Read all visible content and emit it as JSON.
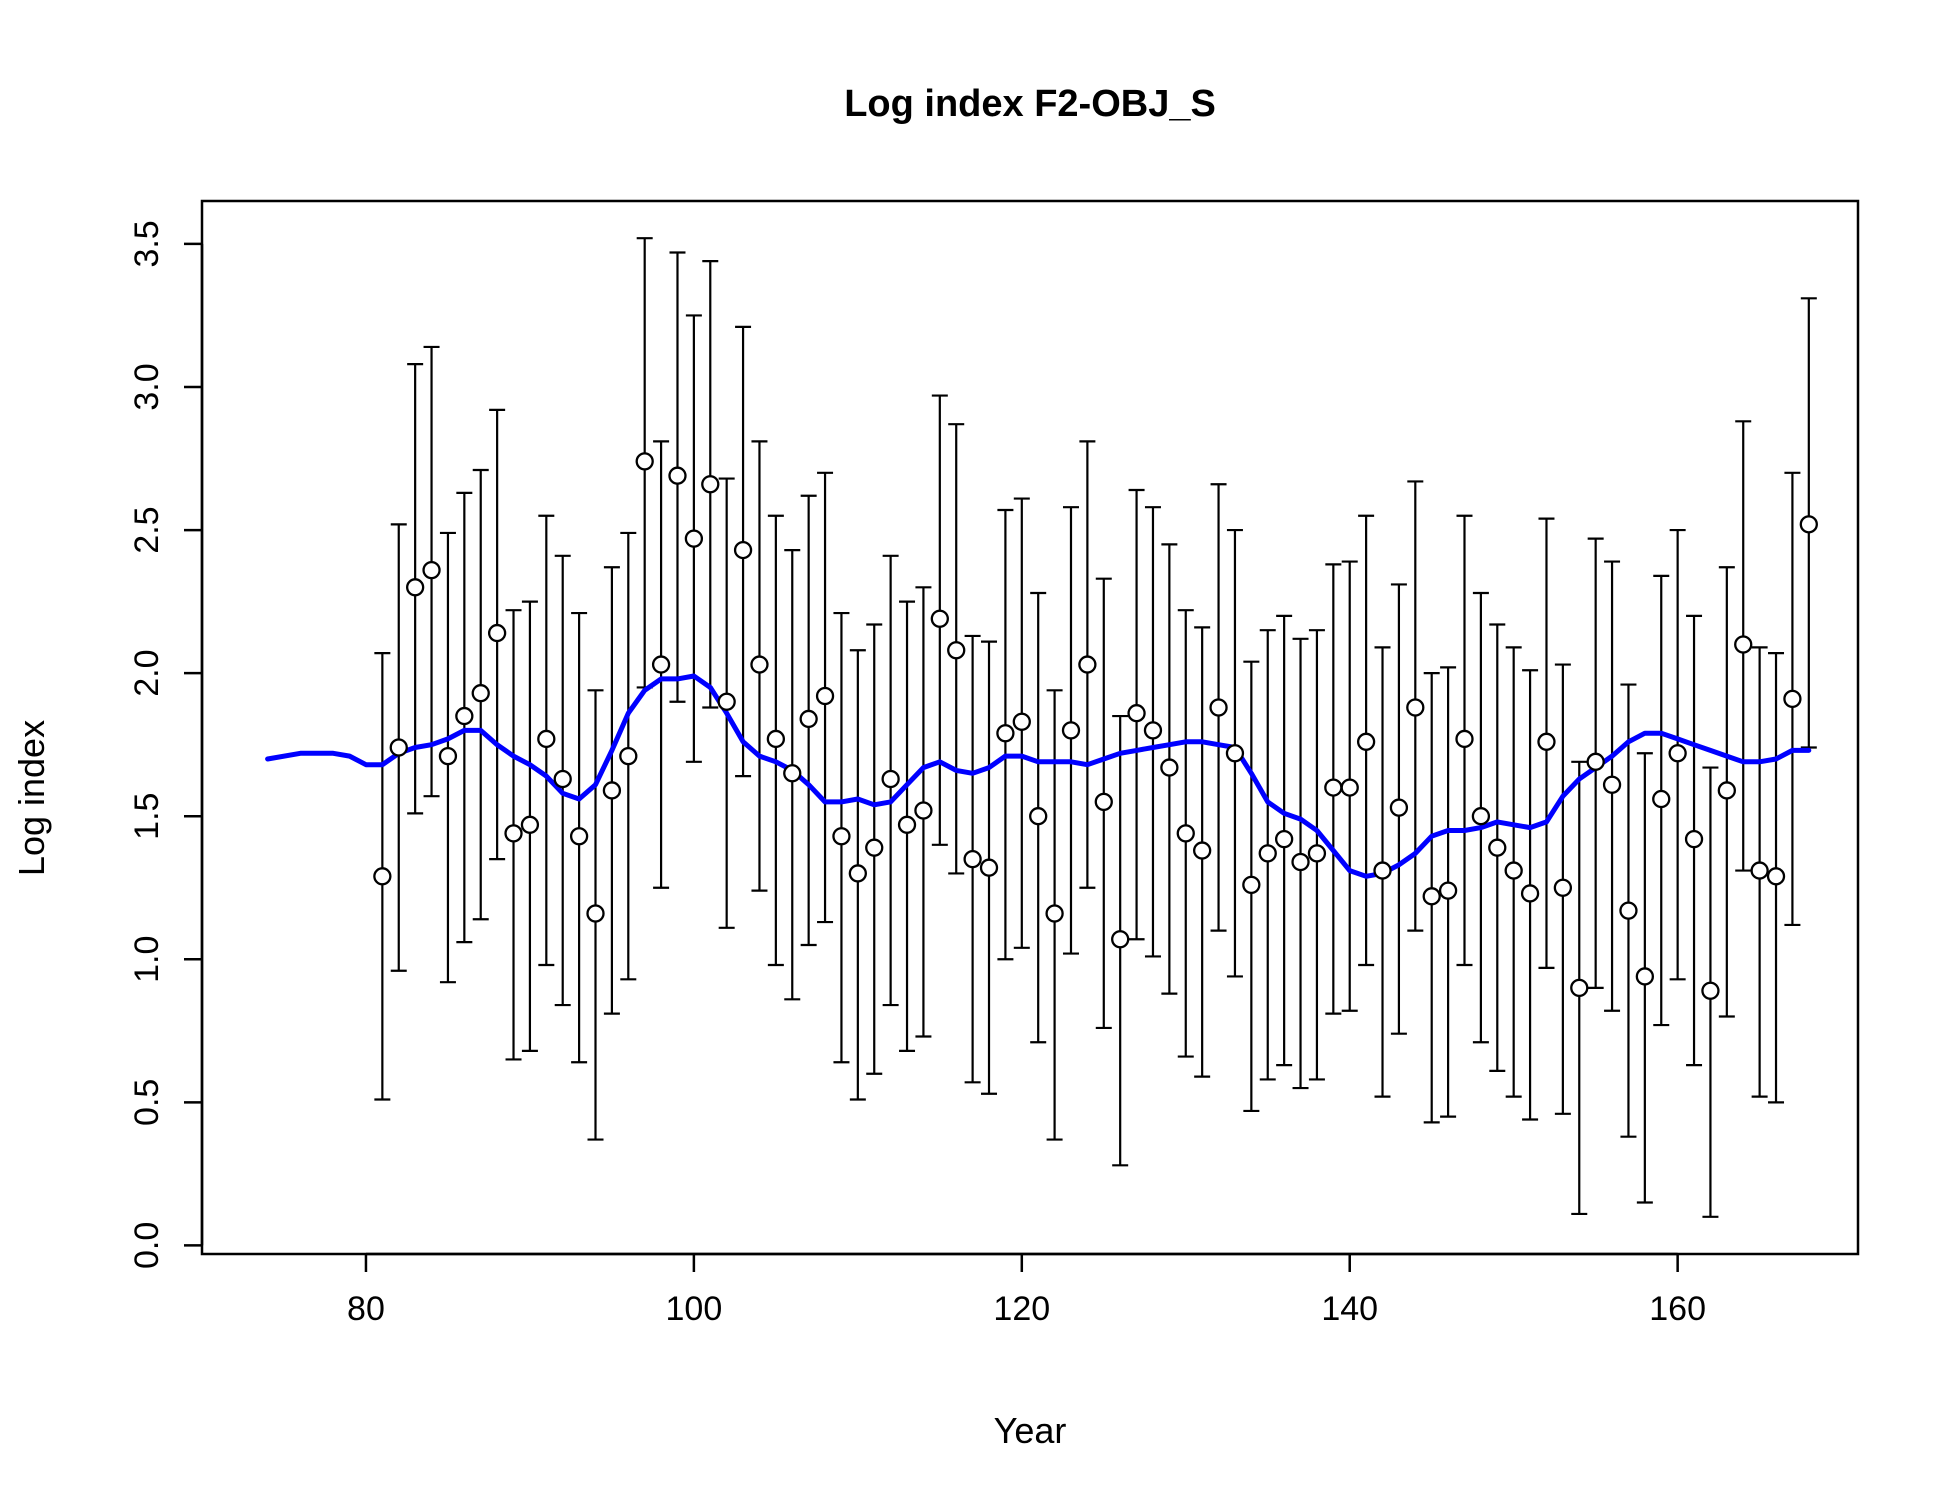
{
  "chart_data": {
    "type": "scatter",
    "title": "Log index F2-OBJ_S",
    "xlabel": "Year",
    "ylabel": "Log index",
    "xlim": [
      70,
      171
    ],
    "ylim": [
      -0.03,
      3.65
    ],
    "xticks": [
      80,
      100,
      120,
      140,
      160
    ],
    "yticks": [
      0.0,
      0.5,
      1.0,
      1.5,
      2.0,
      2.5,
      3.0,
      3.5
    ],
    "xtick_labels": [
      "80",
      "100",
      "120",
      "140",
      "160"
    ],
    "ytick_labels": [
      "0.0",
      "0.5",
      "1.0",
      "1.5",
      "2.0",
      "2.5",
      "3.0",
      "3.5"
    ],
    "grid": false,
    "legend": "none",
    "colors": {
      "points": "#000000",
      "errorbars": "#000000",
      "fit": "#0000ff"
    },
    "observed": {
      "x": [
        81,
        82,
        83,
        84,
        85,
        86,
        87,
        88,
        89,
        90,
        91,
        92,
        93,
        94,
        95,
        96,
        97,
        98,
        99,
        100,
        101,
        102,
        103,
        104,
        105,
        106,
        107,
        108,
        109,
        110,
        111,
        112,
        113,
        114,
        115,
        116,
        117,
        118,
        119,
        120,
        121,
        122,
        123,
        124,
        125,
        126,
        127,
        128,
        129,
        130,
        131,
        132,
        133,
        134,
        135,
        136,
        137,
        138,
        139,
        140,
        141,
        142,
        143,
        144,
        145,
        146,
        147,
        148,
        149,
        150,
        151,
        152,
        153,
        154,
        155,
        156,
        157,
        158,
        159,
        160,
        161,
        162,
        163,
        164,
        165,
        166,
        167,
        168
      ],
      "y": [
        1.29,
        1.74,
        2.3,
        2.36,
        1.71,
        1.85,
        1.93,
        2.14,
        1.44,
        1.47,
        1.77,
        1.63,
        1.43,
        1.16,
        1.59,
        1.71,
        2.74,
        2.03,
        2.69,
        2.47,
        2.66,
        1.9,
        2.43,
        2.03,
        1.77,
        1.65,
        1.84,
        1.92,
        1.43,
        1.3,
        1.39,
        1.63,
        1.47,
        1.52,
        2.19,
        2.08,
        1.35,
        1.32,
        1.79,
        1.83,
        1.5,
        1.16,
        1.8,
        2.03,
        1.55,
        1.07,
        1.86,
        1.8,
        1.67,
        1.44,
        1.38,
        1.88,
        1.72,
        1.26,
        1.37,
        1.42,
        1.34,
        1.37,
        1.6,
        1.6,
        1.76,
        1.31,
        1.53,
        1.88,
        1.22,
        1.24,
        1.77,
        1.5,
        1.39,
        1.31,
        1.23,
        1.76,
        1.25,
        0.9,
        1.69,
        1.61,
        1.17,
        0.94,
        1.56,
        1.72,
        1.42,
        0.89,
        1.59,
        2.1,
        1.31,
        1.29,
        1.91,
        2.52
      ],
      "lower": [
        0.51,
        0.96,
        1.51,
        1.57,
        0.92,
        1.06,
        1.14,
        1.35,
        0.65,
        0.68,
        0.98,
        0.84,
        0.64,
        0.37,
        0.81,
        0.93,
        1.95,
        1.25,
        1.9,
        1.69,
        1.88,
        1.11,
        1.64,
        1.24,
        0.98,
        0.86,
        1.05,
        1.13,
        0.64,
        0.51,
        0.6,
        0.84,
        0.68,
        0.73,
        1.4,
        1.3,
        0.57,
        0.53,
        1.0,
        1.04,
        0.71,
        0.37,
        1.02,
        1.25,
        0.76,
        0.28,
        1.07,
        1.01,
        0.88,
        0.66,
        0.59,
        1.1,
        0.94,
        0.47,
        0.58,
        0.63,
        0.55,
        0.58,
        0.81,
        0.82,
        0.98,
        0.52,
        0.74,
        1.1,
        0.43,
        0.45,
        0.98,
        0.71,
        0.61,
        0.52,
        0.44,
        0.97,
        0.46,
        0.11,
        0.9,
        0.82,
        0.38,
        0.15,
        0.77,
        0.93,
        0.63,
        0.1,
        0.8,
        1.31,
        0.52,
        0.5,
        1.12,
        1.74
      ],
      "upper": [
        2.07,
        2.52,
        3.08,
        3.14,
        2.49,
        2.63,
        2.71,
        2.92,
        2.22,
        2.25,
        2.55,
        2.41,
        2.21,
        1.94,
        2.37,
        2.49,
        3.52,
        2.81,
        3.47,
        3.25,
        3.44,
        2.68,
        3.21,
        2.81,
        2.55,
        2.43,
        2.62,
        2.7,
        2.21,
        2.08,
        2.17,
        2.41,
        2.25,
        2.3,
        2.97,
        2.87,
        2.13,
        2.11,
        2.57,
        2.61,
        2.28,
        1.94,
        2.58,
        2.81,
        2.33,
        1.85,
        2.64,
        2.58,
        2.45,
        2.22,
        2.16,
        2.66,
        2.5,
        2.04,
        2.15,
        2.2,
        2.12,
        2.15,
        2.38,
        2.39,
        2.55,
        2.09,
        2.31,
        2.67,
        2.0,
        2.02,
        2.55,
        2.28,
        2.17,
        2.09,
        2.01,
        2.54,
        2.03,
        1.69,
        2.47,
        2.39,
        1.96,
        1.72,
        2.34,
        2.5,
        2.2,
        1.67,
        2.37,
        2.88,
        2.09,
        2.07,
        2.7,
        3.31
      ]
    },
    "fitted": {
      "x": [
        74,
        76,
        78,
        79,
        80,
        81,
        82,
        83,
        84,
        85,
        86,
        87,
        88,
        89,
        90,
        91,
        92,
        93,
        94,
        95,
        96,
        97,
        98,
        99,
        100,
        101,
        102,
        103,
        104,
        105,
        106,
        107,
        108,
        109,
        110,
        111,
        112,
        113,
        114,
        115,
        116,
        117,
        118,
        119,
        120,
        121,
        122,
        123,
        124,
        125,
        126,
        127,
        128,
        129,
        130,
        131,
        132,
        133,
        134,
        135,
        136,
        137,
        138,
        139,
        140,
        141,
        142,
        143,
        144,
        145,
        146,
        147,
        148,
        149,
        150,
        151,
        152,
        153,
        154,
        155,
        156,
        157,
        158,
        159,
        160,
        161,
        162,
        163,
        164,
        165,
        166,
        167,
        168
      ],
      "y": [
        1.7,
        1.72,
        1.72,
        1.71,
        1.68,
        1.68,
        1.72,
        1.74,
        1.75,
        1.77,
        1.8,
        1.8,
        1.75,
        1.71,
        1.68,
        1.64,
        1.58,
        1.56,
        1.61,
        1.73,
        1.86,
        1.94,
        1.98,
        1.98,
        1.99,
        1.95,
        1.86,
        1.76,
        1.71,
        1.69,
        1.66,
        1.61,
        1.55,
        1.55,
        1.56,
        1.54,
        1.55,
        1.61,
        1.67,
        1.69,
        1.66,
        1.65,
        1.67,
        1.71,
        1.71,
        1.69,
        1.69,
        1.69,
        1.68,
        1.7,
        1.72,
        1.73,
        1.74,
        1.75,
        1.76,
        1.76,
        1.75,
        1.74,
        1.65,
        1.55,
        1.51,
        1.49,
        1.45,
        1.38,
        1.31,
        1.29,
        1.3,
        1.33,
        1.37,
        1.43,
        1.45,
        1.45,
        1.46,
        1.48,
        1.47,
        1.46,
        1.48,
        1.57,
        1.63,
        1.67,
        1.71,
        1.76,
        1.79,
        1.79,
        1.77,
        1.75,
        1.73,
        1.71,
        1.69,
        1.69,
        1.7,
        1.73,
        1.73
      ]
    }
  }
}
